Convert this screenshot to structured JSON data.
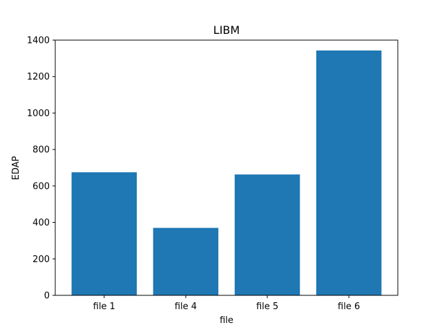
{
  "chart_data": {
    "type": "bar",
    "title": "LIBM",
    "xlabel": "file",
    "ylabel": "EDAP",
    "categories": [
      "file 1",
      "file 4",
      "file 5",
      "file 6"
    ],
    "values": [
      675,
      370,
      663,
      1343
    ],
    "ylim": [
      0,
      1400
    ],
    "yticks": [
      0,
      200,
      400,
      600,
      800,
      1000,
      1200,
      1400
    ],
    "bar_color": "#1f77b4",
    "grid": false,
    "legend": "none"
  }
}
